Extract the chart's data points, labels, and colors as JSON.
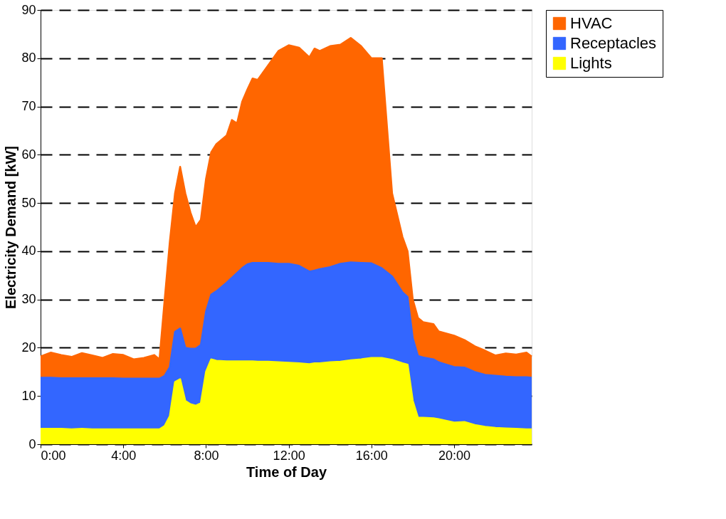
{
  "chart_data": {
    "type": "area",
    "stacked": true,
    "xlabel": "Time of Day",
    "ylabel": "Electricity Demand [kW]",
    "x": [
      0,
      0.5,
      1,
      1.5,
      2,
      2.5,
      3,
      3.5,
      4,
      4.5,
      5,
      5.5,
      5.75,
      6,
      6.25,
      6.5,
      6.75,
      7,
      7.25,
      7.5,
      7.75,
      8,
      8.25,
      8.5,
      9,
      9.25,
      9.5,
      9.75,
      10,
      10.25,
      10.5,
      11,
      11.5,
      12,
      12.5,
      13,
      13.25,
      13.5,
      14,
      14.5,
      15,
      15.5,
      16,
      16.5,
      17,
      17.5,
      17.75,
      18,
      18.25,
      18.5,
      19,
      19.25,
      20,
      20.5,
      21,
      21.5,
      22,
      22.5,
      23,
      23.5,
      23.75
    ],
    "series": [
      {
        "name": "Lights",
        "color": "#ffff00",
        "values": [
          3.2,
          3.2,
          3.2,
          3.1,
          3.2,
          3.1,
          3.1,
          3.1,
          3.1,
          3.1,
          3.1,
          3.1,
          3.1,
          3.8,
          5.8,
          12.9,
          13.5,
          9,
          8.3,
          8,
          8.5,
          15,
          17.6,
          17.3,
          17.2,
          17.2,
          17.2,
          17.2,
          17.2,
          17.2,
          17.1,
          17.1,
          17,
          16.9,
          16.8,
          16.6,
          16.8,
          16.8,
          17,
          17.1,
          17.4,
          17.6,
          17.9,
          17.9,
          17.5,
          16.8,
          16.5,
          9,
          5.5,
          5.5,
          5.4,
          5.2,
          4.5,
          4.6,
          4,
          3.6,
          3.4,
          3.3,
          3.2,
          3.1,
          3.1
        ]
      },
      {
        "name": "Receptacles",
        "color": "#3366ff",
        "values": [
          10.6,
          10.6,
          10.5,
          10.6,
          10.5,
          10.6,
          10.6,
          10.6,
          10.5,
          10.5,
          10.5,
          10.5,
          10.5,
          10.4,
          10.2,
          10.4,
          10.5,
          11,
          11.5,
          11.8,
          12.1,
          12.5,
          13.4,
          14.4,
          16.3,
          17.3,
          18.3,
          19.3,
          20.1,
          20.4,
          20.5,
          20.5,
          20.4,
          20.5,
          20.2,
          19.2,
          19.2,
          19.5,
          19.7,
          20.3,
          20.3,
          20,
          19.6,
          18.6,
          17.3,
          14.7,
          14,
          13,
          12.8,
          12.5,
          12.2,
          11.8,
          11.5,
          11.3,
          11,
          10.8,
          10.8,
          10.7,
          10.7,
          10.8,
          10.7
        ]
      },
      {
        "name": "HVAC",
        "color": "#ff6600",
        "values": [
          4.4,
          5.2,
          4.8,
          4.4,
          5.2,
          4.7,
          4.2,
          5,
          4.9,
          4,
          4.3,
          4.9,
          4,
          15.8,
          26,
          28.7,
          33.5,
          32,
          28.2,
          25.2,
          25.9,
          27.5,
          29.5,
          30.5,
          30.5,
          32.7,
          31,
          34.5,
          36.2,
          38.2,
          37.9,
          40.9,
          44.1,
          45.3,
          45.2,
          44.4,
          46,
          45.2,
          45.8,
          45.4,
          46.5,
          44.9,
          42.5,
          43.5,
          17.2,
          11.5,
          9.5,
          8,
          7.9,
          7.3,
          7.3,
          6.4,
          6.5,
          5.7,
          5.3,
          5,
          4.2,
          4.8,
          4.7,
          5.1,
          4.4
        ]
      }
    ],
    "xlim": [
      0,
      23.75
    ],
    "xticks": [
      {
        "value": 0,
        "label": "0:00"
      },
      {
        "value": 4,
        "label": "4:00"
      },
      {
        "value": 8,
        "label": "8:00"
      },
      {
        "value": 12,
        "label": "12:00"
      },
      {
        "value": 16,
        "label": "16:00"
      },
      {
        "value": 20,
        "label": "20:00"
      }
    ],
    "ylim": [
      0,
      90
    ],
    "yticks": [
      0,
      10,
      20,
      30,
      40,
      50,
      60,
      70,
      80,
      90
    ],
    "grid": "y",
    "legend": "top right",
    "line_style": "solid",
    "marker": "none"
  }
}
